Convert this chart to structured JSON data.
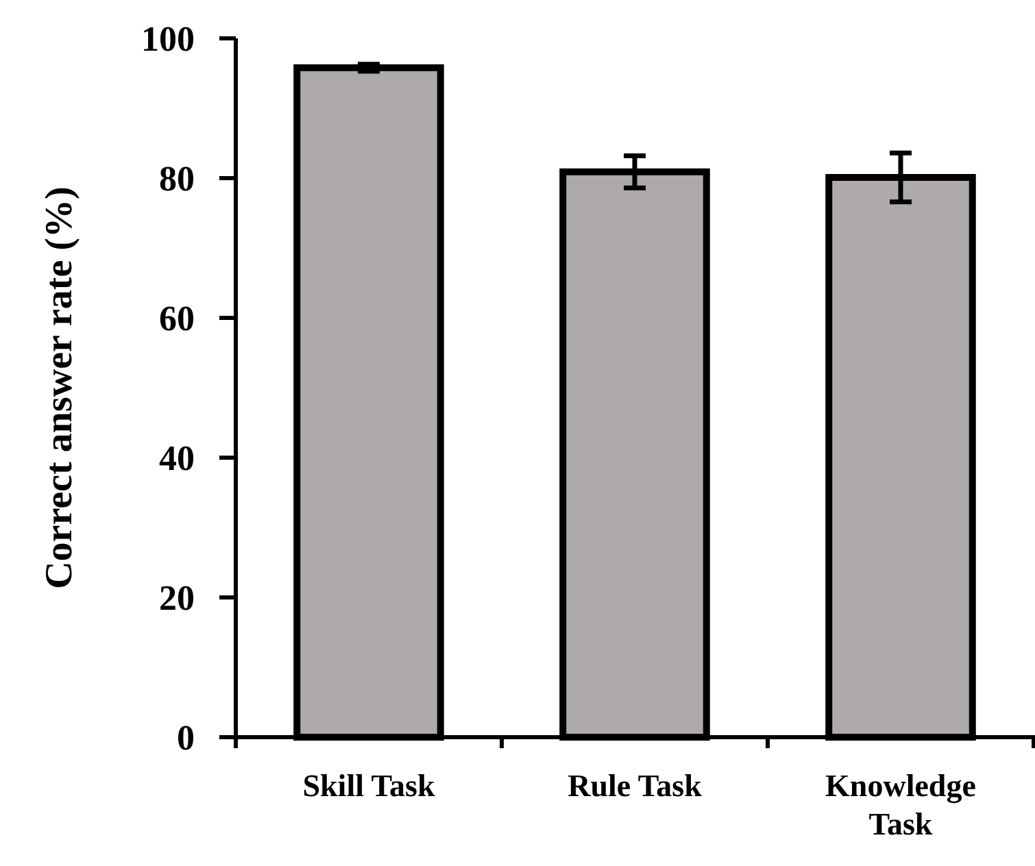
{
  "chart_data": {
    "type": "bar",
    "ylabel": "Correct answer rate (%)",
    "categories": [
      "Skill Task",
      "Rule Task",
      "Knowledge Task"
    ],
    "values": [
      95.8,
      80.9,
      80.1
    ],
    "errors": [
      0.5,
      2.3,
      3.5
    ],
    "color": "#aeaaaa",
    "ylim": [
      0,
      100
    ],
    "yticks": [
      0,
      20,
      40,
      60,
      80,
      100
    ],
    "grid": false
  }
}
